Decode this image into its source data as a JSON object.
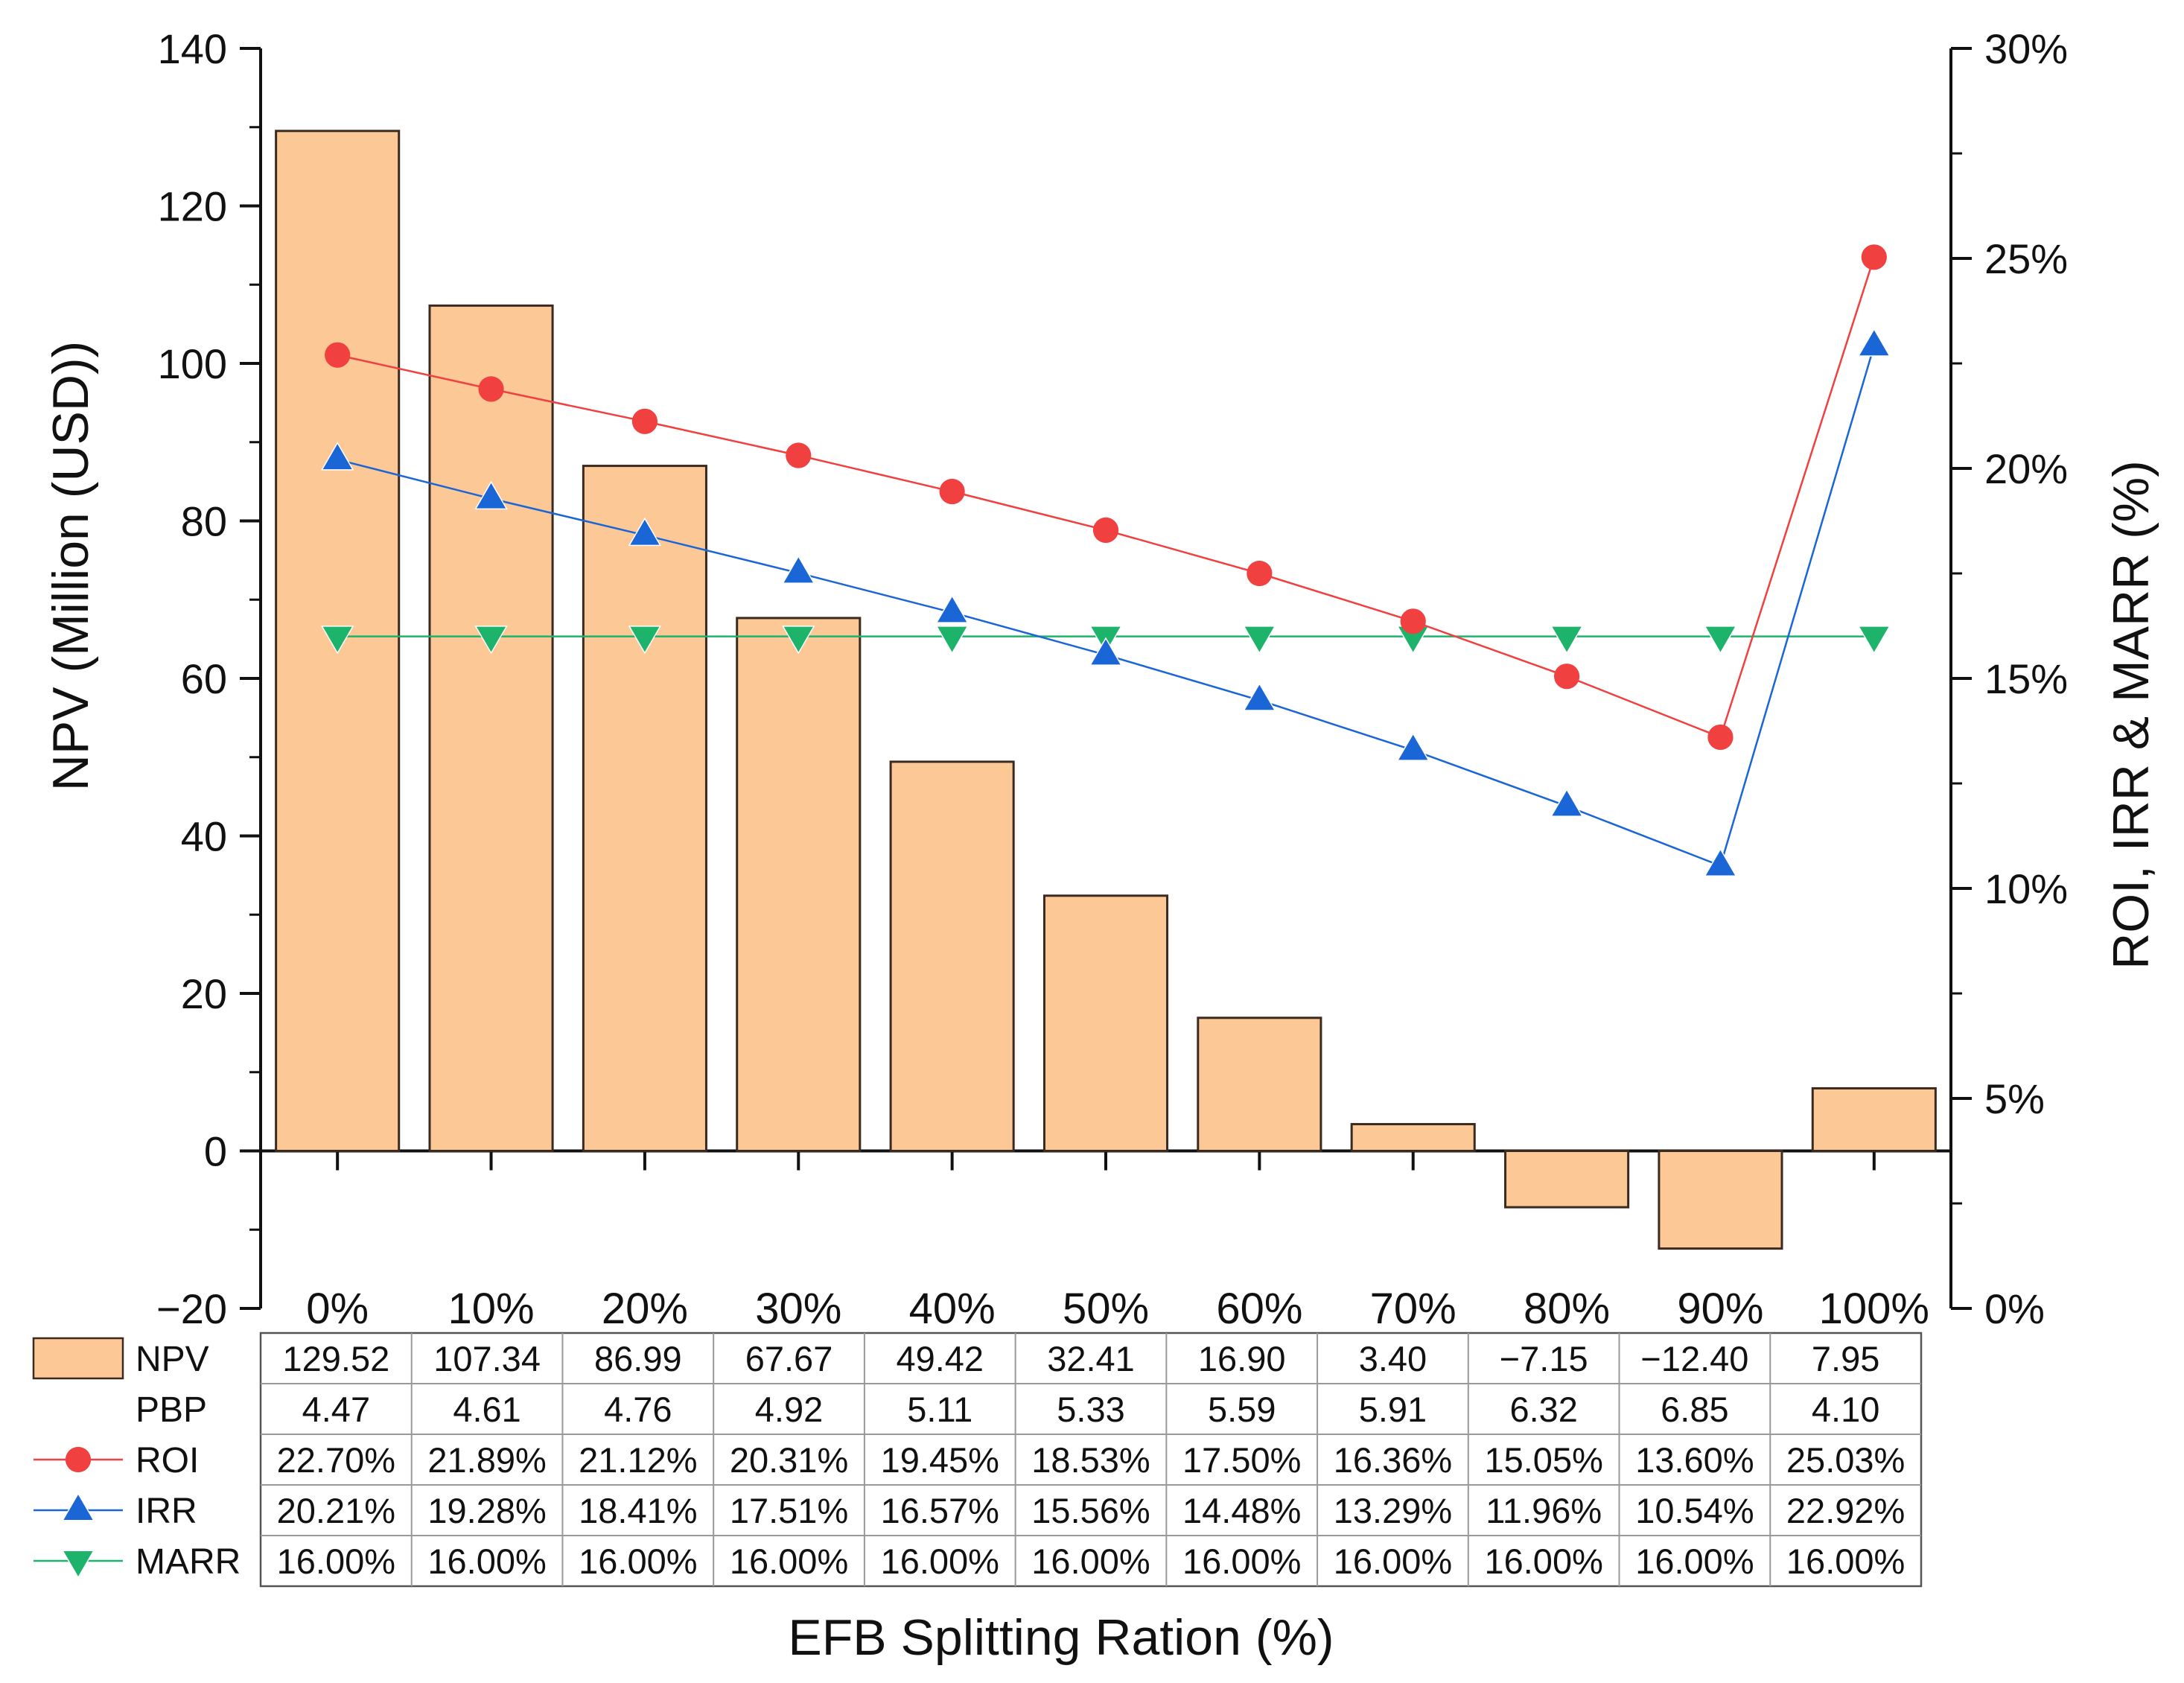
{
  "chart_data": {
    "type": "bar",
    "categories": [
      "0%",
      "10%",
      "20%",
      "30%",
      "40%",
      "50%",
      "60%",
      "70%",
      "80%",
      "90%",
      "100%"
    ],
    "xlabel": "EFB Splitting Ration (%)",
    "ylabel": "NPV (Million (USD))",
    "y2label": "ROI, IRR & MARR (%)",
    "ylim": [
      -20,
      140
    ],
    "yticks": [
      -20,
      0,
      20,
      40,
      60,
      80,
      100,
      120,
      140
    ],
    "ytick_labels": [
      "−20",
      "0",
      "20",
      "40",
      "60",
      "80",
      "100",
      "120",
      "140"
    ],
    "y2lim": [
      0,
      30
    ],
    "y2ticks": [
      0,
      5,
      10,
      15,
      20,
      25,
      30
    ],
    "y2tick_labels": [
      "0%",
      "5%",
      "10%",
      "15%",
      "20%",
      "25%",
      "30%"
    ],
    "series": [
      {
        "name": "NPV",
        "type": "bar",
        "axis": "left",
        "color": "#fcc896",
        "edge": "#3a2a20",
        "values": [
          129.52,
          107.34,
          86.99,
          67.67,
          49.42,
          32.41,
          16.9,
          3.4,
          -7.15,
          -12.4,
          7.95
        ],
        "labels": [
          "129.52",
          "107.34",
          "86.99",
          "67.67",
          "49.42",
          "32.41",
          "16.90",
          "3.40",
          "−7.15",
          "−12.40",
          "7.95"
        ]
      },
      {
        "name": "PBP",
        "type": "table-only",
        "values": [
          4.47,
          4.61,
          4.76,
          4.92,
          5.11,
          5.33,
          5.59,
          5.91,
          6.32,
          6.85,
          4.1
        ],
        "labels": [
          "4.47",
          "4.61",
          "4.76",
          "4.92",
          "5.11",
          "5.33",
          "5.59",
          "5.91",
          "6.32",
          "6.85",
          "4.10"
        ]
      },
      {
        "name": "ROI",
        "type": "line",
        "axis": "right",
        "marker": "circle",
        "color": "#f04040",
        "values": [
          22.7,
          21.89,
          21.12,
          20.31,
          19.45,
          18.53,
          17.5,
          16.36,
          15.05,
          13.6,
          25.03
        ],
        "labels": [
          "22.70%",
          "21.89%",
          "21.12%",
          "20.31%",
          "19.45%",
          "18.53%",
          "17.50%",
          "16.36%",
          "15.05%",
          "13.60%",
          "25.03%"
        ]
      },
      {
        "name": "IRR",
        "type": "line",
        "axis": "right",
        "marker": "triangle-up",
        "color": "#1a66d6",
        "values": [
          20.21,
          19.28,
          18.41,
          17.51,
          16.57,
          15.56,
          14.48,
          13.29,
          11.96,
          10.54,
          22.92
        ],
        "labels": [
          "20.21%",
          "19.28%",
          "18.41%",
          "17.51%",
          "16.57%",
          "15.56%",
          "14.48%",
          "13.29%",
          "11.96%",
          "10.54%",
          "22.92%"
        ]
      },
      {
        "name": "MARR",
        "type": "line",
        "axis": "right",
        "marker": "triangle-down",
        "color": "#1db36b",
        "values": [
          16.0,
          16.0,
          16.0,
          16.0,
          16.0,
          16.0,
          16.0,
          16.0,
          16.0,
          16.0,
          16.0
        ],
        "labels": [
          "16.00%",
          "16.00%",
          "16.00%",
          "16.00%",
          "16.00%",
          "16.00%",
          "16.00%",
          "16.00%",
          "16.00%",
          "16.00%",
          "16.00%"
        ]
      }
    ]
  }
}
